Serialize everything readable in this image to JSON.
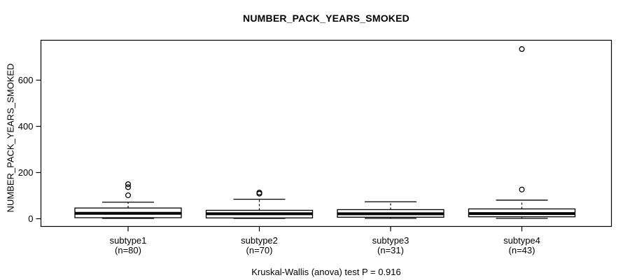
{
  "chart_data": {
    "type": "boxplot",
    "title": "NUMBER_PACK_YEARS_SMOKED",
    "ylabel": "NUMBER_PACK_YEARS_SMOKED",
    "caption": "Kruskal-Wallis (anova) test P = 0.916",
    "yticks": [
      0,
      200,
      400,
      600
    ],
    "ylim": [
      -40,
      770
    ],
    "grid": false,
    "legend": "none",
    "categories": [
      {
        "label": "subtype1",
        "n_label": "(n=80)",
        "n": 80
      },
      {
        "label": "subtype2",
        "n_label": "(n=70)",
        "n": 70
      },
      {
        "label": "subtype3",
        "n_label": "(n=31)",
        "n": 31
      },
      {
        "label": "subtype4",
        "n_label": "(n=43)",
        "n": 43
      }
    ],
    "series": [
      {
        "name": "subtype1",
        "whisker_low": 0,
        "q1": 3,
        "median": 22,
        "q3": 45,
        "whisker_high": 70,
        "outliers": [
          100,
          135,
          148
        ]
      },
      {
        "name": "subtype2",
        "whisker_low": 0,
        "q1": 2,
        "median": 20,
        "q3": 35,
        "whisker_high": 83,
        "outliers": [
          107,
          112
        ]
      },
      {
        "name": "subtype3",
        "whisker_low": 0,
        "q1": 5,
        "median": 20,
        "q3": 38,
        "whisker_high": 72,
        "outliers": []
      },
      {
        "name": "subtype4",
        "whisker_low": 0,
        "q1": 7,
        "median": 21,
        "q3": 41,
        "whisker_high": 79,
        "outliers": [
          125,
          733
        ]
      }
    ],
    "colors": {
      "stroke": "#000000",
      "box_fill": "#ffffff",
      "background": "#ffffff",
      "text": "#000000"
    }
  }
}
